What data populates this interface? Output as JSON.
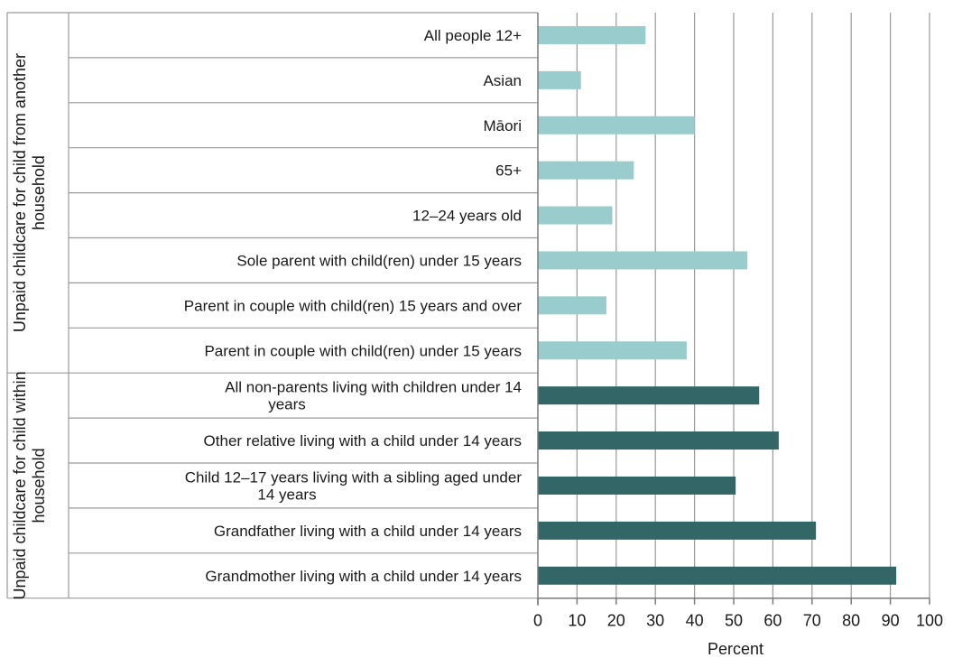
{
  "chart_data": {
    "type": "bar",
    "orientation": "horizontal",
    "xlabel": "Percent",
    "xlim": [
      0,
      100
    ],
    "xticks": [
      "0",
      "10",
      "20",
      "30",
      "40",
      "50",
      "60",
      "70",
      "80",
      "90",
      "100"
    ],
    "grid": true,
    "legend": "none",
    "groups": [
      {
        "label": "Unpaid childcare for child from another household",
        "color": "#99cccc",
        "categories": [
          "All people 12+",
          "Asian",
          "Māori",
          "65+",
          "12–24 years old",
          "Sole parent with child(ren) under 15 years",
          "Parent in couple with child(ren) 15 years and over",
          "Parent in couple with child(ren) under 15 years"
        ],
        "values": [
          27.5,
          11,
          40,
          24.5,
          19,
          53.5,
          17.5,
          38
        ]
      },
      {
        "label": "Unpaid childcare for child within household",
        "color": "#336666",
        "categories": [
          "All non-parents living with children under 14 years",
          "Other relative living with a child under 14 years",
          "Child 12–17 years living with a sibling aged under 14 years",
          "Grandfather living with a child under 14 years",
          "Grandmother living with a child under 14 years"
        ],
        "values": [
          56.5,
          61.5,
          50.5,
          71,
          91.5
        ]
      }
    ]
  }
}
